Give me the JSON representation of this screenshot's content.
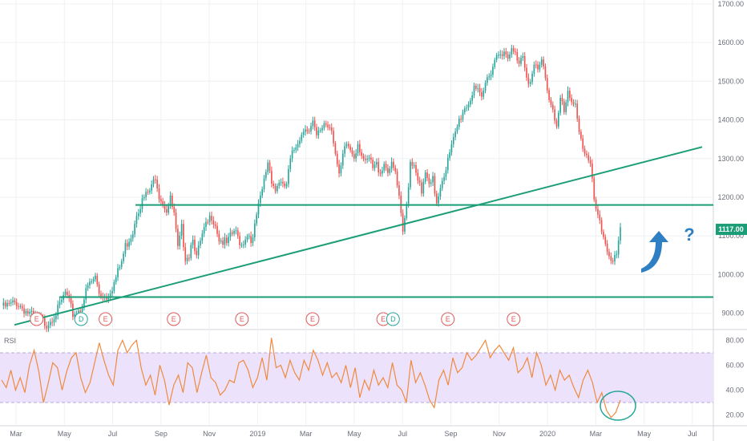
{
  "chart_data": [
    {
      "type": "candlestick",
      "title": "",
      "x_tick_labels": [
        "Mar",
        "May",
        "Jul",
        "Sep",
        "Nov",
        "2019",
        "Mar",
        "May",
        "Jul",
        "Sep",
        "Nov",
        "2020",
        "Mar",
        "May",
        "Jul"
      ],
      "y_tick_labels": [
        "1700.00",
        "1600.00",
        "1500.00",
        "1400.00",
        "1300.00",
        "1200.00",
        "1100.00",
        "1000.00",
        "900.00"
      ],
      "ylim": [
        860,
        1710
      ],
      "last_price_label": "1117.00",
      "price_path": [
        [
          0,
          920
        ],
        [
          4,
          935
        ],
        [
          8,
          900
        ],
        [
          12,
          880
        ],
        [
          15,
          915
        ],
        [
          17,
          960
        ],
        [
          19,
          905
        ],
        [
          21,
          918
        ],
        [
          23,
          975
        ],
        [
          25,
          1000
        ],
        [
          26,
          960
        ],
        [
          28,
          950
        ],
        [
          30,
          985
        ],
        [
          32,
          1040
        ],
        [
          33,
          1080
        ],
        [
          35,
          1120
        ],
        [
          36,
          1170
        ],
        [
          38,
          1205
        ],
        [
          40,
          1230
        ],
        [
          41,
          1265
        ],
        [
          42,
          1215
        ],
        [
          44,
          1175
        ],
        [
          45,
          1200
        ],
        [
          46,
          1160
        ],
        [
          47,
          1070
        ],
        [
          48,
          1125
        ],
        [
          49,
          1055
        ],
        [
          50,
          1060
        ],
        [
          51,
          1110
        ],
        [
          52,
          1050
        ],
        [
          53,
          1090
        ],
        [
          54,
          1120
        ],
        [
          56,
          1160
        ],
        [
          57,
          1140
        ],
        [
          58,
          1100
        ],
        [
          60,
          1085
        ],
        [
          62,
          1120
        ],
        [
          64,
          1085
        ],
        [
          65,
          1105
        ],
        [
          66,
          1110
        ],
        [
          67,
          1095
        ],
        [
          68,
          1160
        ],
        [
          69,
          1200
        ],
        [
          70,
          1250
        ],
        [
          71,
          1300
        ],
        [
          72,
          1255
        ],
        [
          73,
          1225
        ],
        [
          74,
          1250
        ],
        [
          75,
          1230
        ],
        [
          76,
          1240
        ],
        [
          77,
          1300
        ],
        [
          78,
          1330
        ],
        [
          79,
          1355
        ],
        [
          80,
          1370
        ],
        [
          81,
          1395
        ],
        [
          82,
          1375
        ],
        [
          83,
          1395
        ],
        [
          84,
          1360
        ],
        [
          85,
          1380
        ],
        [
          86,
          1400
        ],
        [
          87,
          1395
        ],
        [
          88,
          1390
        ],
        [
          89,
          1320
        ],
        [
          90,
          1255
        ],
        [
          91,
          1310
        ],
        [
          92,
          1345
        ],
        [
          93,
          1330
        ],
        [
          94,
          1315
        ],
        [
          95,
          1350
        ],
        [
          96,
          1320
        ],
        [
          97,
          1290
        ],
        [
          98,
          1305
        ],
        [
          99,
          1280
        ],
        [
          100,
          1290
        ],
        [
          101,
          1275
        ],
        [
          102,
          1295
        ],
        [
          103,
          1280
        ],
        [
          104,
          1285
        ],
        [
          105,
          1270
        ],
        [
          106,
          1200
        ],
        [
          107,
          1110
        ],
        [
          108,
          1190
        ],
        [
          109,
          1300
        ],
        [
          110,
          1295
        ],
        [
          111,
          1260
        ],
        [
          112,
          1210
        ],
        [
          113,
          1270
        ],
        [
          114,
          1230
        ],
        [
          115,
          1250
        ],
        [
          116,
          1195
        ],
        [
          117,
          1240
        ],
        [
          118,
          1270
        ],
        [
          119,
          1300
        ],
        [
          120,
          1335
        ],
        [
          121,
          1370
        ],
        [
          122,
          1405
        ],
        [
          123,
          1430
        ],
        [
          124,
          1445
        ],
        [
          125,
          1460
        ],
        [
          126,
          1500
        ],
        [
          127,
          1475
        ],
        [
          128,
          1455
        ],
        [
          129,
          1500
        ],
        [
          130,
          1525
        ],
        [
          131,
          1550
        ],
        [
          132,
          1575
        ],
        [
          133,
          1590
        ],
        [
          134,
          1575
        ],
        [
          135,
          1560
        ],
        [
          136,
          1585
        ],
        [
          137,
          1575
        ],
        [
          138,
          1560
        ],
        [
          139,
          1580
        ],
        [
          140,
          1525
        ],
        [
          141,
          1500
        ],
        [
          142,
          1545
        ],
        [
          143,
          1530
        ],
        [
          144,
          1560
        ],
        [
          145,
          1520
        ],
        [
          146,
          1460
        ],
        [
          147,
          1440
        ],
        [
          148,
          1390
        ],
        [
          149,
          1460
        ],
        [
          150,
          1425
        ],
        [
          151,
          1470
        ],
        [
          152,
          1445
        ],
        [
          153,
          1460
        ],
        [
          154,
          1380
        ],
        [
          155,
          1340
        ],
        [
          156,
          1310
        ],
        [
          157,
          1285
        ],
        [
          158,
          1200
        ],
        [
          159,
          1150
        ],
        [
          160,
          1120
        ],
        [
          161,
          1090
        ],
        [
          162,
          1060
        ],
        [
          163,
          1045
        ],
        [
          164,
          1050
        ],
        [
          165,
          1117
        ]
      ],
      "horizontal_lines": [
        {
          "y": 1180,
          "x_start": 0.19
        },
        {
          "y": 942,
          "x_start": 0.083
        }
      ],
      "trendline": {
        "from": [
          0,
          870
        ],
        "to": [
          1,
          1330
        ]
      },
      "event_markers": [
        {
          "label": "E",
          "pos": 0.047,
          "color": "#e25a5a"
        },
        {
          "label": "D",
          "pos": 0.12,
          "color": "#26a69a"
        },
        {
          "label": "E",
          "pos": 0.16,
          "color": "#e25a5a"
        },
        {
          "label": "E",
          "pos": 0.272,
          "color": "#e25a5a"
        },
        {
          "label": "E",
          "pos": 0.384,
          "color": "#e25a5a"
        },
        {
          "label": "E",
          "pos": 0.5,
          "color": "#e25a5a"
        },
        {
          "label": "E",
          "pos": 0.616,
          "color": "#e25a5a"
        },
        {
          "label": "D",
          "pos": 0.632,
          "color": "#26a69a"
        },
        {
          "label": "E",
          "pos": 0.722,
          "color": "#e25a5a"
        },
        {
          "label": "E",
          "pos": 0.83,
          "color": "#e25a5a"
        }
      ],
      "annotation_text": "?",
      "colors": {
        "up": "#26a69a",
        "down": "#ef5350",
        "line": "#1b9e77",
        "arrow": "#2f7fc4",
        "question": "#2f7fc4"
      }
    },
    {
      "type": "line",
      "title": "RSI",
      "y_tick_labels": [
        "80.00",
        "60.00",
        "40.00",
        "20.00"
      ],
      "ylim": [
        12,
        88
      ],
      "band": [
        30,
        70
      ],
      "values": [
        48,
        42,
        56,
        40,
        50,
        38,
        60,
        72,
        55,
        30,
        45,
        62,
        58,
        40,
        55,
        66,
        70,
        50,
        38,
        46,
        62,
        78,
        64,
        52,
        44,
        72,
        80,
        70,
        76,
        80,
        58,
        44,
        52,
        36,
        60,
        48,
        28,
        44,
        52,
        38,
        62,
        58,
        38,
        54,
        68,
        50,
        46,
        36,
        40,
        48,
        46,
        62,
        64,
        56,
        42,
        50,
        66,
        48,
        82,
        58,
        60,
        50,
        64,
        54,
        48,
        64,
        56,
        72,
        64,
        52,
        62,
        50,
        54,
        46,
        60,
        42,
        58,
        34,
        48,
        40,
        56,
        44,
        50,
        42,
        62,
        44,
        40,
        30,
        64,
        46,
        54,
        44,
        32,
        26,
        48,
        56,
        44,
        66,
        54,
        58,
        70,
        64,
        68,
        74,
        80,
        66,
        72,
        76,
        70,
        64,
        74,
        54,
        58,
        66,
        50,
        70,
        60,
        44,
        52,
        40,
        56,
        48,
        52,
        42,
        34,
        48,
        56,
        46,
        30,
        38,
        24,
        18,
        22,
        32
      ],
      "colors": {
        "line": "#ef8a3e",
        "band": "#ede2fb",
        "band_border": "#b9a8d6",
        "circle": "#26a69a"
      }
    }
  ]
}
